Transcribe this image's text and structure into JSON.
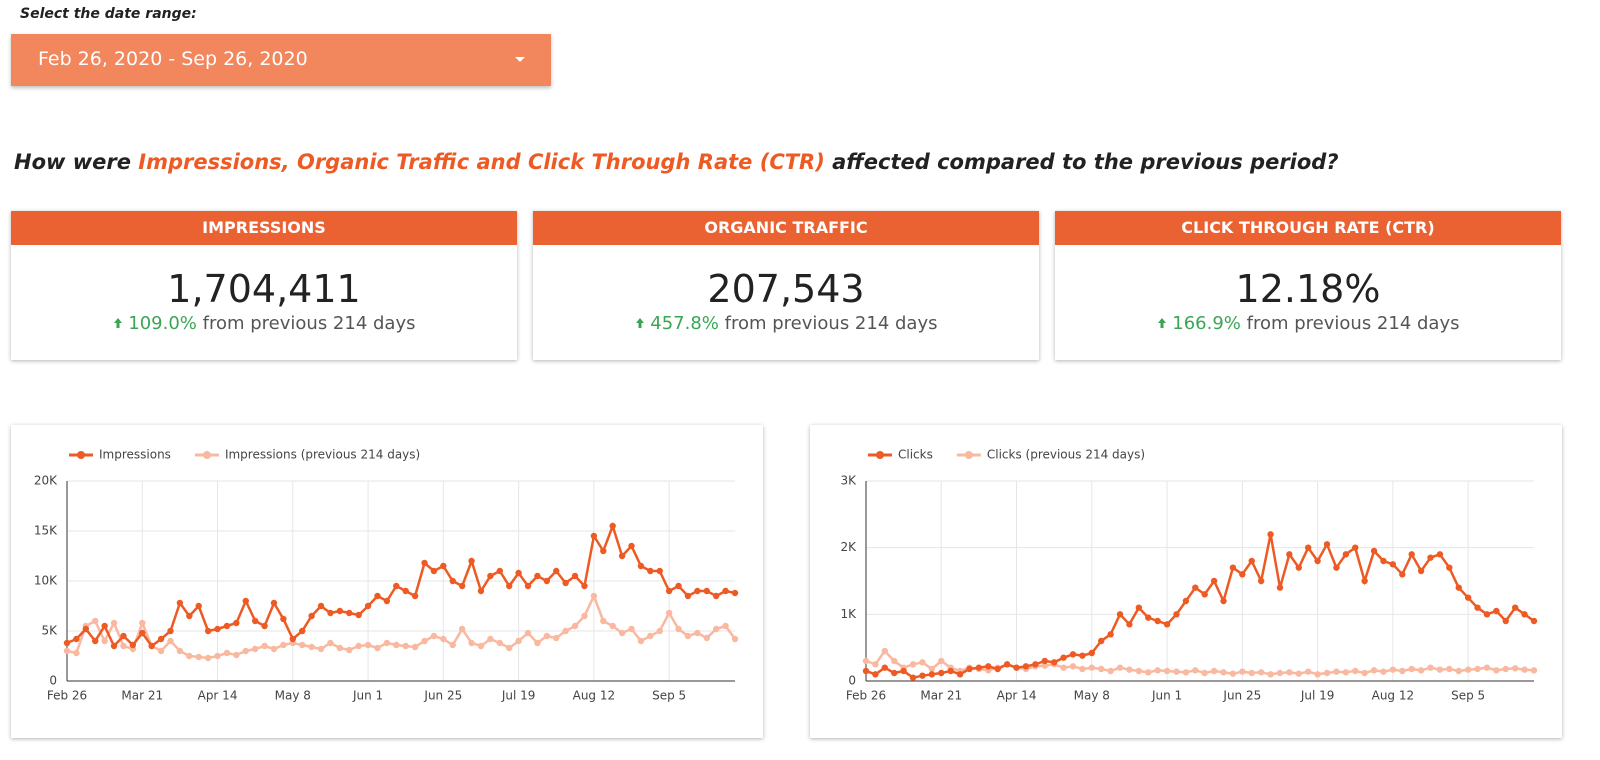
{
  "date_range": {
    "label": "Select the date range:",
    "value": "Feb 26, 2020 - Sep 26, 2020"
  },
  "question": {
    "before": "How were",
    "highlight": "Impressions, Organic Traffic and Click Through Rate (CTR)",
    "after": "affected compared to the previous period?"
  },
  "scorecards": [
    {
      "title": "IMPRESSIONS",
      "value": "1,704,411",
      "change": "109.0%",
      "comparison": "from previous 214 days"
    },
    {
      "title": "ORGANIC TRAFFIC",
      "value": "207,543",
      "change": "457.8%",
      "comparison": "from previous 214 days"
    },
    {
      "title": "CLICK THROUGH RATE (CTR)",
      "value": "12.18%",
      "change": "166.9%",
      "comparison": "from previous 214 days"
    }
  ],
  "chart_data": [
    {
      "type": "line",
      "grid": true,
      "categories": [
        "Feb 26",
        null,
        null,
        null,
        null,
        null,
        null,
        null,
        "Mar 21",
        null,
        null,
        null,
        null,
        null,
        null,
        null,
        "Apr 14",
        null,
        null,
        null,
        null,
        null,
        null,
        null,
        "May 8",
        null,
        null,
        null,
        null,
        null,
        null,
        null,
        "Jun 1",
        null,
        null,
        null,
        null,
        null,
        null,
        null,
        "Jun 25",
        null,
        null,
        null,
        null,
        null,
        null,
        null,
        "Jul 19",
        null,
        null,
        null,
        null,
        null,
        null,
        null,
        "Aug 12",
        null,
        null,
        null,
        null,
        null,
        null,
        null,
        "Sep 5",
        null,
        null,
        null,
        null,
        null,
        null,
        null
      ],
      "ylim": [
        0,
        20000
      ],
      "yticks": [
        0,
        {
          "value": 5000,
          "label": "5K"
        },
        {
          "value": 10000,
          "label": "10K"
        },
        {
          "value": 15000,
          "label": "15K"
        },
        {
          "value": 20000,
          "label": "20K"
        }
      ],
      "series": [
        {
          "name": "Impressions",
          "color": "#ee5a24",
          "values": [
            3800,
            4200,
            5200,
            4000,
            5500,
            3500,
            4500,
            3600,
            4800,
            3500,
            4200,
            5000,
            7800,
            6500,
            7500,
            5000,
            5200,
            5500,
            5800,
            8000,
            6000,
            5500,
            7800,
            6200,
            4200,
            5000,
            6500,
            7500,
            6800,
            7000,
            6800,
            6600,
            7500,
            8500,
            8000,
            9500,
            9000,
            8500,
            11800,
            11000,
            11500,
            10000,
            9500,
            12000,
            9000,
            10500,
            11000,
            9500,
            10800,
            9500,
            10500,
            10000,
            11000,
            9800,
            10500,
            9500,
            14500,
            13000,
            15500,
            12500,
            13500,
            11500,
            11000,
            11000,
            9000,
            9500,
            8500,
            9000,
            9000,
            8500,
            9000,
            8800
          ]
        },
        {
          "name": "Impressions (previous 214 days)",
          "color": "#f9b8a0",
          "values": [
            3000,
            2800,
            5500,
            6000,
            4000,
            5800,
            3500,
            3200,
            5800,
            3500,
            3000,
            4000,
            3000,
            2500,
            2400,
            2300,
            2500,
            2800,
            2600,
            3000,
            3200,
            3500,
            3200,
            3600,
            3800,
            3600,
            3400,
            3200,
            3800,
            3300,
            3100,
            3500,
            3600,
            3300,
            3800,
            3600,
            3500,
            3400,
            4000,
            4500,
            4200,
            3600,
            5200,
            3800,
            3500,
            4200,
            3800,
            3300,
            4000,
            4800,
            3800,
            4500,
            4300,
            5000,
            5500,
            6500,
            8500,
            6000,
            5500,
            4800,
            5200,
            4000,
            4500,
            5000,
            6800,
            5200,
            4500,
            4800,
            4300,
            5200,
            5500,
            4200
          ]
        }
      ]
    },
    {
      "type": "line",
      "grid": true,
      "categories": [
        "Feb 26",
        null,
        null,
        null,
        null,
        null,
        null,
        null,
        "Mar 21",
        null,
        null,
        null,
        null,
        null,
        null,
        null,
        "Apr 14",
        null,
        null,
        null,
        null,
        null,
        null,
        null,
        "May 8",
        null,
        null,
        null,
        null,
        null,
        null,
        null,
        "Jun 1",
        null,
        null,
        null,
        null,
        null,
        null,
        null,
        "Jun 25",
        null,
        null,
        null,
        null,
        null,
        null,
        null,
        "Jul 19",
        null,
        null,
        null,
        null,
        null,
        null,
        null,
        "Aug 12",
        null,
        null,
        null,
        null,
        null,
        null,
        null,
        "Sep 5",
        null,
        null,
        null,
        null,
        null,
        null,
        null
      ],
      "ylim": [
        0,
        3000
      ],
      "yticks": [
        0,
        {
          "value": 1000,
          "label": "1K"
        },
        {
          "value": 2000,
          "label": "2K"
        },
        {
          "value": 3000,
          "label": "3K"
        }
      ],
      "series": [
        {
          "name": "Clicks",
          "color": "#ee5a24",
          "values": [
            150,
            100,
            200,
            120,
            150,
            50,
            80,
            100,
            120,
            150,
            100,
            180,
            200,
            220,
            180,
            250,
            200,
            220,
            250,
            300,
            280,
            350,
            400,
            380,
            420,
            600,
            700,
            1000,
            850,
            1100,
            950,
            900,
            850,
            1000,
            1200,
            1400,
            1300,
            1500,
            1200,
            1700,
            1600,
            1800,
            1500,
            2200,
            1400,
            1900,
            1700,
            2000,
            1800,
            2050,
            1700,
            1900,
            2000,
            1500,
            1950,
            1800,
            1750,
            1600,
            1900,
            1650,
            1850,
            1900,
            1700,
            1400,
            1250,
            1100,
            1000,
            1050,
            900,
            1100,
            1000,
            900
          ]
        },
        {
          "name": "Clicks (previous 214 days)",
          "color": "#f9b8a0",
          "values": [
            300,
            250,
            450,
            300,
            200,
            250,
            280,
            180,
            300,
            200,
            150,
            200,
            180,
            160,
            200,
            250,
            200,
            180,
            220,
            230,
            250,
            200,
            220,
            180,
            200,
            180,
            150,
            200,
            170,
            150,
            130,
            160,
            150,
            140,
            130,
            160,
            120,
            150,
            130,
            110,
            140,
            120,
            130,
            100,
            120,
            130,
            110,
            140,
            100,
            120,
            140,
            130,
            150,
            120,
            160,
            140,
            170,
            150,
            180,
            160,
            200,
            170,
            180,
            150,
            170,
            180,
            200,
            160,
            180,
            190,
            170,
            160
          ]
        }
      ]
    }
  ]
}
